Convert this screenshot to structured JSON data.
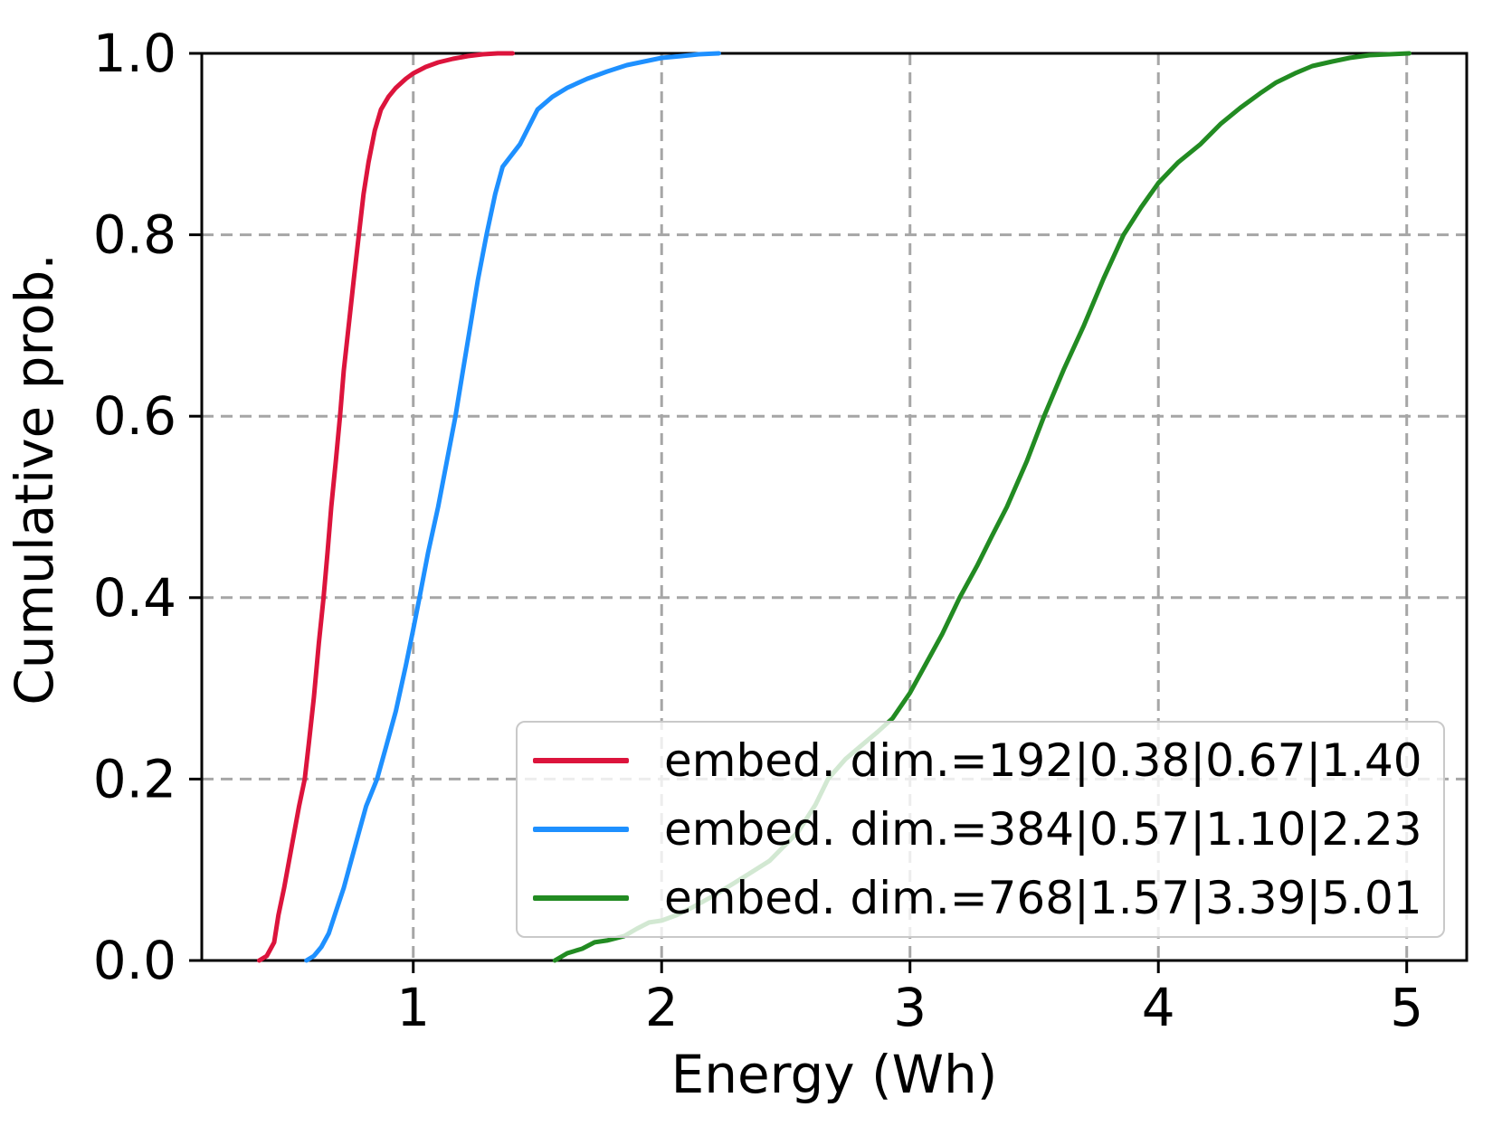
{
  "chart_data": {
    "type": "line",
    "subtype": "empirical-cdf",
    "title": "",
    "xlabel": "Energy (Wh)",
    "ylabel": "Cumulative prob.",
    "xlim": [
      0.1485,
      5.2415
    ],
    "ylim": [
      0,
      1
    ],
    "x_ticks": {
      "values": [
        1,
        2,
        3,
        4,
        5
      ],
      "labels": [
        "1",
        "2",
        "3",
        "4",
        "5"
      ]
    },
    "y_ticks": {
      "values": [
        0.0,
        0.2,
        0.4,
        0.6,
        0.8,
        1.0
      ],
      "labels": [
        "0.0",
        "0.2",
        "0.4",
        "0.6",
        "0.8",
        "1.0"
      ]
    },
    "grid": {
      "visible": true,
      "style": "dashed",
      "color": "#a6a6a6"
    },
    "legend": {
      "location": "lower right",
      "background": "#ffffff",
      "background_alpha": 0.8,
      "border_color": "#c9c9c9"
    },
    "series": [
      {
        "name": "embed. dim.=192|0.38|0.67|1.40",
        "color": "#DC143C",
        "embed_dim": "192",
        "legend_stats": {
          "min": 0.38,
          "median": 0.67,
          "max": 1.4
        },
        "points": [
          [
            0.38,
            0
          ],
          [
            0.41,
            0.005
          ],
          [
            0.44,
            0.02
          ],
          [
            0.457,
            0.05
          ],
          [
            0.48,
            0.08
          ],
          [
            0.5,
            0.11
          ],
          [
            0.52,
            0.14
          ],
          [
            0.54,
            0.17
          ],
          [
            0.563,
            0.2
          ],
          [
            0.58,
            0.24
          ],
          [
            0.6,
            0.29
          ],
          [
            0.62,
            0.35
          ],
          [
            0.639,
            0.4
          ],
          [
            0.655,
            0.45
          ],
          [
            0.67,
            0.5
          ],
          [
            0.688,
            0.55
          ],
          [
            0.705,
            0.6
          ],
          [
            0.72,
            0.65
          ],
          [
            0.74,
            0.7
          ],
          [
            0.76,
            0.75
          ],
          [
            0.781,
            0.8
          ],
          [
            0.8,
            0.845
          ],
          [
            0.82,
            0.88
          ],
          [
            0.845,
            0.915
          ],
          [
            0.87,
            0.938
          ],
          [
            0.9,
            0.952
          ],
          [
            0.93,
            0.962
          ],
          [
            0.97,
            0.972
          ],
          [
            1.0,
            0.978
          ],
          [
            1.05,
            0.985
          ],
          [
            1.1,
            0.99
          ],
          [
            1.16,
            0.994
          ],
          [
            1.22,
            0.997
          ],
          [
            1.28,
            0.999
          ],
          [
            1.34,
            1.0
          ],
          [
            1.4,
            1.0
          ]
        ]
      },
      {
        "name": "embed. dim.=384|0.57|1.10|2.23",
        "color": "#1E90FF",
        "embed_dim": "384",
        "legend_stats": {
          "min": 0.57,
          "median": 1.1,
          "max": 2.23
        },
        "points": [
          [
            0.57,
            0
          ],
          [
            0.6,
            0.005
          ],
          [
            0.63,
            0.015
          ],
          [
            0.66,
            0.03
          ],
          [
            0.69,
            0.055
          ],
          [
            0.72,
            0.08
          ],
          [
            0.75,
            0.11
          ],
          [
            0.78,
            0.14
          ],
          [
            0.81,
            0.17
          ],
          [
            0.854,
            0.2
          ],
          [
            0.89,
            0.235
          ],
          [
            0.93,
            0.275
          ],
          [
            0.97,
            0.325
          ],
          [
            1.0,
            0.365
          ],
          [
            1.025,
            0.4
          ],
          [
            1.06,
            0.45
          ],
          [
            1.1,
            0.5
          ],
          [
            1.135,
            0.55
          ],
          [
            1.17,
            0.6
          ],
          [
            1.2,
            0.65
          ],
          [
            1.23,
            0.7
          ],
          [
            1.26,
            0.75
          ],
          [
            1.295,
            0.8
          ],
          [
            1.33,
            0.845
          ],
          [
            1.36,
            0.875
          ],
          [
            1.43,
            0.9
          ],
          [
            1.5,
            0.938
          ],
          [
            1.56,
            0.952
          ],
          [
            1.62,
            0.962
          ],
          [
            1.7,
            0.972
          ],
          [
            1.78,
            0.98
          ],
          [
            1.86,
            0.987
          ],
          [
            1.93,
            0.991
          ],
          [
            2.0,
            0.995
          ],
          [
            2.08,
            0.997
          ],
          [
            2.15,
            0.999
          ],
          [
            2.23,
            1.0
          ]
        ]
      },
      {
        "name": "embed. dim.=768|1.57|3.39|5.01",
        "color": "#228B22",
        "embed_dim": "768",
        "legend_stats": {
          "min": 1.57,
          "median": 3.39,
          "max": 5.01
        },
        "points": [
          [
            1.57,
            0
          ],
          [
            1.62,
            0.008
          ],
          [
            1.68,
            0.013
          ],
          [
            1.73,
            0.02
          ],
          [
            1.78,
            0.022
          ],
          [
            1.85,
            0.027
          ],
          [
            1.9,
            0.035
          ],
          [
            1.95,
            0.042
          ],
          [
            2.0,
            0.044
          ],
          [
            2.06,
            0.05
          ],
          [
            2.12,
            0.058
          ],
          [
            2.2,
            0.07
          ],
          [
            2.29,
            0.085
          ],
          [
            2.36,
            0.097
          ],
          [
            2.435,
            0.11
          ],
          [
            2.5,
            0.128
          ],
          [
            2.55,
            0.142
          ],
          [
            2.62,
            0.172
          ],
          [
            2.67,
            0.2
          ],
          [
            2.74,
            0.222
          ],
          [
            2.8,
            0.236
          ],
          [
            2.87,
            0.252
          ],
          [
            2.93,
            0.267
          ],
          [
            3.0,
            0.295
          ],
          [
            3.06,
            0.325
          ],
          [
            3.13,
            0.36
          ],
          [
            3.2,
            0.4
          ],
          [
            3.27,
            0.435
          ],
          [
            3.33,
            0.468
          ],
          [
            3.39,
            0.5
          ],
          [
            3.47,
            0.55
          ],
          [
            3.54,
            0.6
          ],
          [
            3.62,
            0.652
          ],
          [
            3.7,
            0.7
          ],
          [
            3.78,
            0.752
          ],
          [
            3.86,
            0.8
          ],
          [
            3.93,
            0.83
          ],
          [
            4.0,
            0.857
          ],
          [
            4.08,
            0.88
          ],
          [
            4.17,
            0.9
          ],
          [
            4.25,
            0.922
          ],
          [
            4.33,
            0.94
          ],
          [
            4.41,
            0.956
          ],
          [
            4.475,
            0.968
          ],
          [
            4.55,
            0.978
          ],
          [
            4.62,
            0.986
          ],
          [
            4.7,
            0.991
          ],
          [
            4.77,
            0.995
          ],
          [
            4.85,
            0.998
          ],
          [
            4.93,
            0.999
          ],
          [
            5.01,
            1.0
          ]
        ]
      }
    ]
  }
}
